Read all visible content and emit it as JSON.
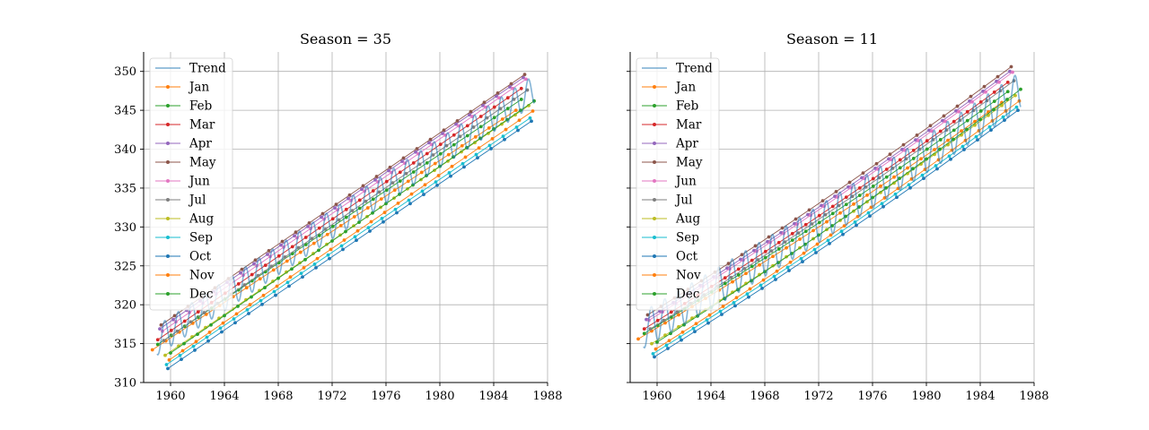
{
  "chart_data": [
    {
      "type": "line",
      "title": "Season = 35",
      "xlabel": "",
      "ylabel": "",
      "xlim": [
        1958.0,
        1988.0
      ],
      "ylim": [
        310,
        352.5
      ],
      "xticks": [
        1960,
        1964,
        1968,
        1972,
        1976,
        1980,
        1984,
        1988
      ],
      "yticks": [
        310,
        315,
        320,
        325,
        330,
        335,
        340,
        345,
        350
      ],
      "grid": true,
      "legend": "top-left",
      "trend": {
        "name": "Trend",
        "color": "#1f77b4",
        "x_start": 1959.0,
        "x_end": 1987.0,
        "y_start": 315.4,
        "y_end": 347.6,
        "curvature": 0.0,
        "amplitude": 1.9
      },
      "series": [
        {
          "name": "Jan",
          "color": "#ff7f0e",
          "offset": -0.35,
          "start": 314.2,
          "end": 345.0
        },
        {
          "name": "Feb",
          "color": "#2ca02c",
          "offset": 0.05,
          "start": 314.9,
          "end": 346.4
        },
        {
          "name": "Mar",
          "color": "#d62728",
          "offset": 0.05,
          "start": 315.5,
          "end": 347.8
        },
        {
          "name": "Apr",
          "color": "#9467bd",
          "offset": 0.2,
          "start": 316.9,
          "end": 349.2
        },
        {
          "name": "May",
          "color": "#8c564b",
          "offset": 0.3,
          "start": 317.4,
          "end": 349.6
        },
        {
          "name": "Jun",
          "color": "#e377c2",
          "offset": 0.4,
          "start": 316.6,
          "end": 349.0
        },
        {
          "name": "Jul",
          "color": "#7f7f7f",
          "offset": 0.5,
          "start": 315.4,
          "end": 347.6
        },
        {
          "name": "Aug",
          "color": "#bcbd22",
          "offset": 0.6,
          "start": 313.5,
          "end": 345.6
        },
        {
          "name": "Sep",
          "color": "#17becf",
          "offset": 0.7,
          "start": 312.3,
          "end": 344.0
        },
        {
          "name": "Oct",
          "color": "#1f77b4",
          "offset": 0.8,
          "start": 311.8,
          "end": 343.6
        },
        {
          "name": "Nov",
          "color": "#ff7f0e",
          "offset": 0.9,
          "start": 312.9,
          "end": 344.9
        },
        {
          "name": "Dec",
          "color": "#2ca02c",
          "offset": 1.0,
          "start": 313.8,
          "end": 346.2
        }
      ]
    },
    {
      "type": "line",
      "title": "Season = 11",
      "xlabel": "",
      "ylabel": "",
      "xlim": [
        1958.0,
        1988.0
      ],
      "ylim": [
        310,
        352.5
      ],
      "xticks": [
        1960,
        1964,
        1968,
        1972,
        1976,
        1980,
        1984,
        1988
      ],
      "yticks": [
        310,
        315,
        320,
        325,
        330,
        335,
        340,
        345,
        350
      ],
      "grid": true,
      "legend": "top-left",
      "trend": {
        "name": "Trend",
        "color": "#1f77b4",
        "x_start": 1959.0,
        "x_end": 1987.0,
        "y_start": 316.8,
        "y_end": 347.6,
        "curvature": -3.0,
        "amplitude": 2.4
      },
      "series": [
        {
          "name": "Jan",
          "color": "#ff7f0e",
          "offset": -0.4,
          "start": 315.6,
          "end": 346.0
        },
        {
          "name": "Feb",
          "color": "#2ca02c",
          "offset": 0.05,
          "start": 316.3,
          "end": 347.4
        },
        {
          "name": "Mar",
          "color": "#d62728",
          "offset": 0.05,
          "start": 316.9,
          "end": 348.6
        },
        {
          "name": "Apr",
          "color": "#9467bd",
          "offset": 0.2,
          "start": 318.1,
          "end": 350.0
        },
        {
          "name": "May",
          "color": "#8c564b",
          "offset": 0.3,
          "start": 318.7,
          "end": 350.6
        },
        {
          "name": "Jun",
          "color": "#e377c2",
          "offset": 0.4,
          "start": 318.0,
          "end": 349.9
        },
        {
          "name": "Jul",
          "color": "#7f7f7f",
          "offset": 0.5,
          "start": 316.9,
          "end": 348.8
        },
        {
          "name": "Aug",
          "color": "#bcbd22",
          "offset": 0.6,
          "start": 315.0,
          "end": 346.9
        },
        {
          "name": "Sep",
          "color": "#17becf",
          "offset": 0.7,
          "start": 313.7,
          "end": 345.4
        },
        {
          "name": "Oct",
          "color": "#1f77b4",
          "offset": 0.8,
          "start": 313.3,
          "end": 345.0
        },
        {
          "name": "Nov",
          "color": "#ff7f0e",
          "offset": 0.9,
          "start": 314.3,
          "end": 346.2
        },
        {
          "name": "Dec",
          "color": "#2ca02c",
          "offset": 1.0,
          "start": 315.2,
          "end": 347.7
        }
      ]
    }
  ]
}
